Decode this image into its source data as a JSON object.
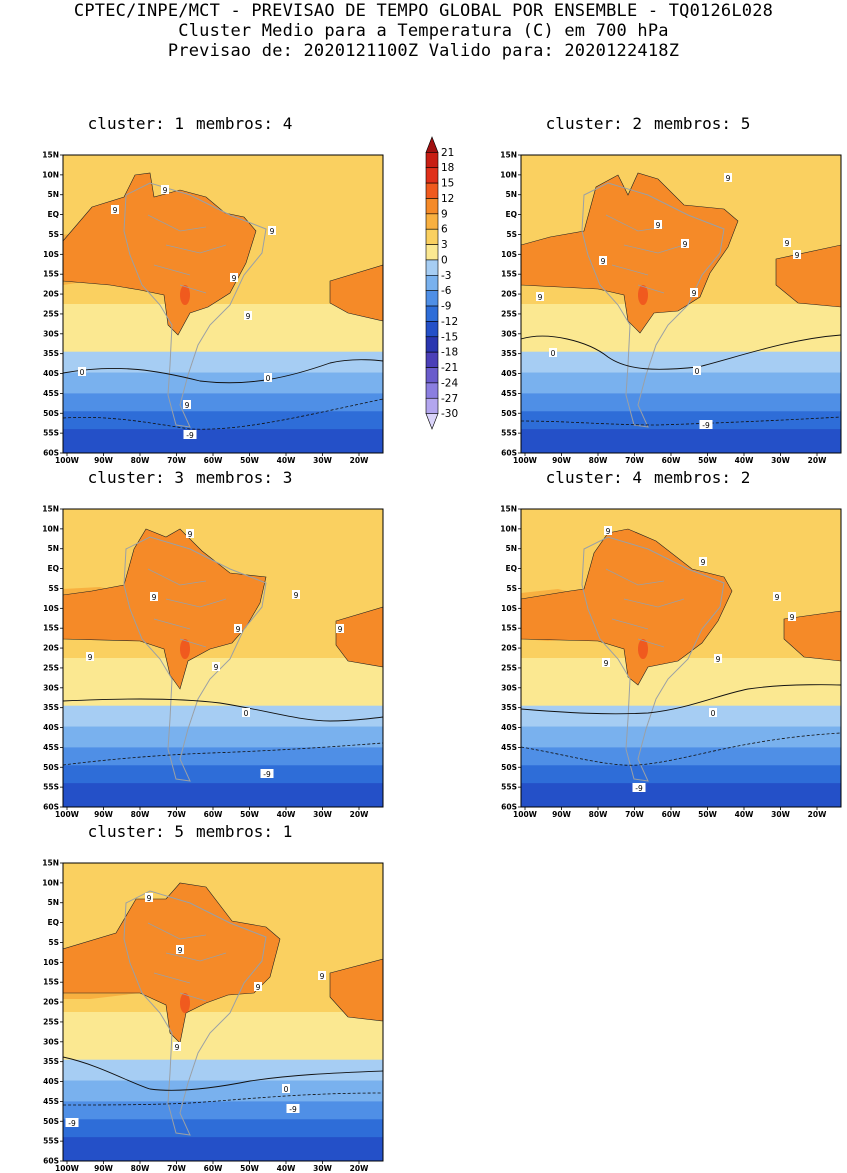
{
  "header": {
    "line1": "CPTEC/INPE/MCT - PREVISAO DE TEMPO GLOBAL POR ENSEMBLE - TQ0126L028",
    "line2": "Cluster Medio para a Temperatura (C) em 700 hPa",
    "line3": "Previsao de: 2020121100Z   Valido para: 2020122418Z"
  },
  "axes": {
    "lat_labels": [
      "15N",
      "10N",
      "5N",
      "EQ",
      "5S",
      "10S",
      "15S",
      "20S",
      "25S",
      "30S",
      "35S",
      "40S",
      "45S",
      "50S",
      "55S",
      "60S"
    ],
    "lon_labels": [
      "100W",
      "90W",
      "80W",
      "70W",
      "60W",
      "50W",
      "40W",
      "30W",
      "20W"
    ]
  },
  "colorbar": {
    "levels": [
      "21",
      "18",
      "15",
      "12",
      "9",
      "6",
      "3",
      "0",
      "-3",
      "-6",
      "-9",
      "-12",
      "-15",
      "-18",
      "-21",
      "-24",
      "-27",
      "-30"
    ],
    "colors": [
      "#a01010",
      "#c81e14",
      "#e0301a",
      "#f05a1e",
      "#f58a28",
      "#f8b040",
      "#fad060",
      "#fbe891",
      "#a6cdf3",
      "#79b1ee",
      "#4f8fe6",
      "#2e6dd8",
      "#2450c8",
      "#2a36b0",
      "#4b3fb8",
      "#6a5ccc",
      "#8b7ee0",
      "#b3a6ef",
      "#dad4fa"
    ]
  },
  "panels": [
    {
      "cluster_label": "cluster: 1",
      "members_label": "membros: 4",
      "contour_labels": [
        "9",
        "9",
        "9",
        "9",
        "9",
        "9",
        "0",
        "0",
        "-9"
      ]
    },
    {
      "cluster_label": "cluster: 2",
      "members_label": "membros: 5",
      "contour_labels": [
        "9",
        "9",
        "9",
        "9",
        "9",
        "9",
        "9",
        "9",
        "0",
        "0",
        "-9"
      ]
    },
    {
      "cluster_label": "cluster: 3",
      "members_label": "membros: 3",
      "contour_labels": [
        "9",
        "9",
        "9",
        "9",
        "9",
        "9",
        "9",
        "0",
        "-9"
      ]
    },
    {
      "cluster_label": "cluster: 4",
      "members_label": "membros: 2",
      "contour_labels": [
        "9",
        "9",
        "9",
        "9",
        "9",
        "9",
        "0",
        "-9"
      ]
    },
    {
      "cluster_label": "cluster: 5",
      "members_label": "membros: 1",
      "contour_labels": [
        "9",
        "9",
        "9",
        "9",
        "9",
        "0",
        "-9",
        "-9"
      ]
    }
  ]
}
